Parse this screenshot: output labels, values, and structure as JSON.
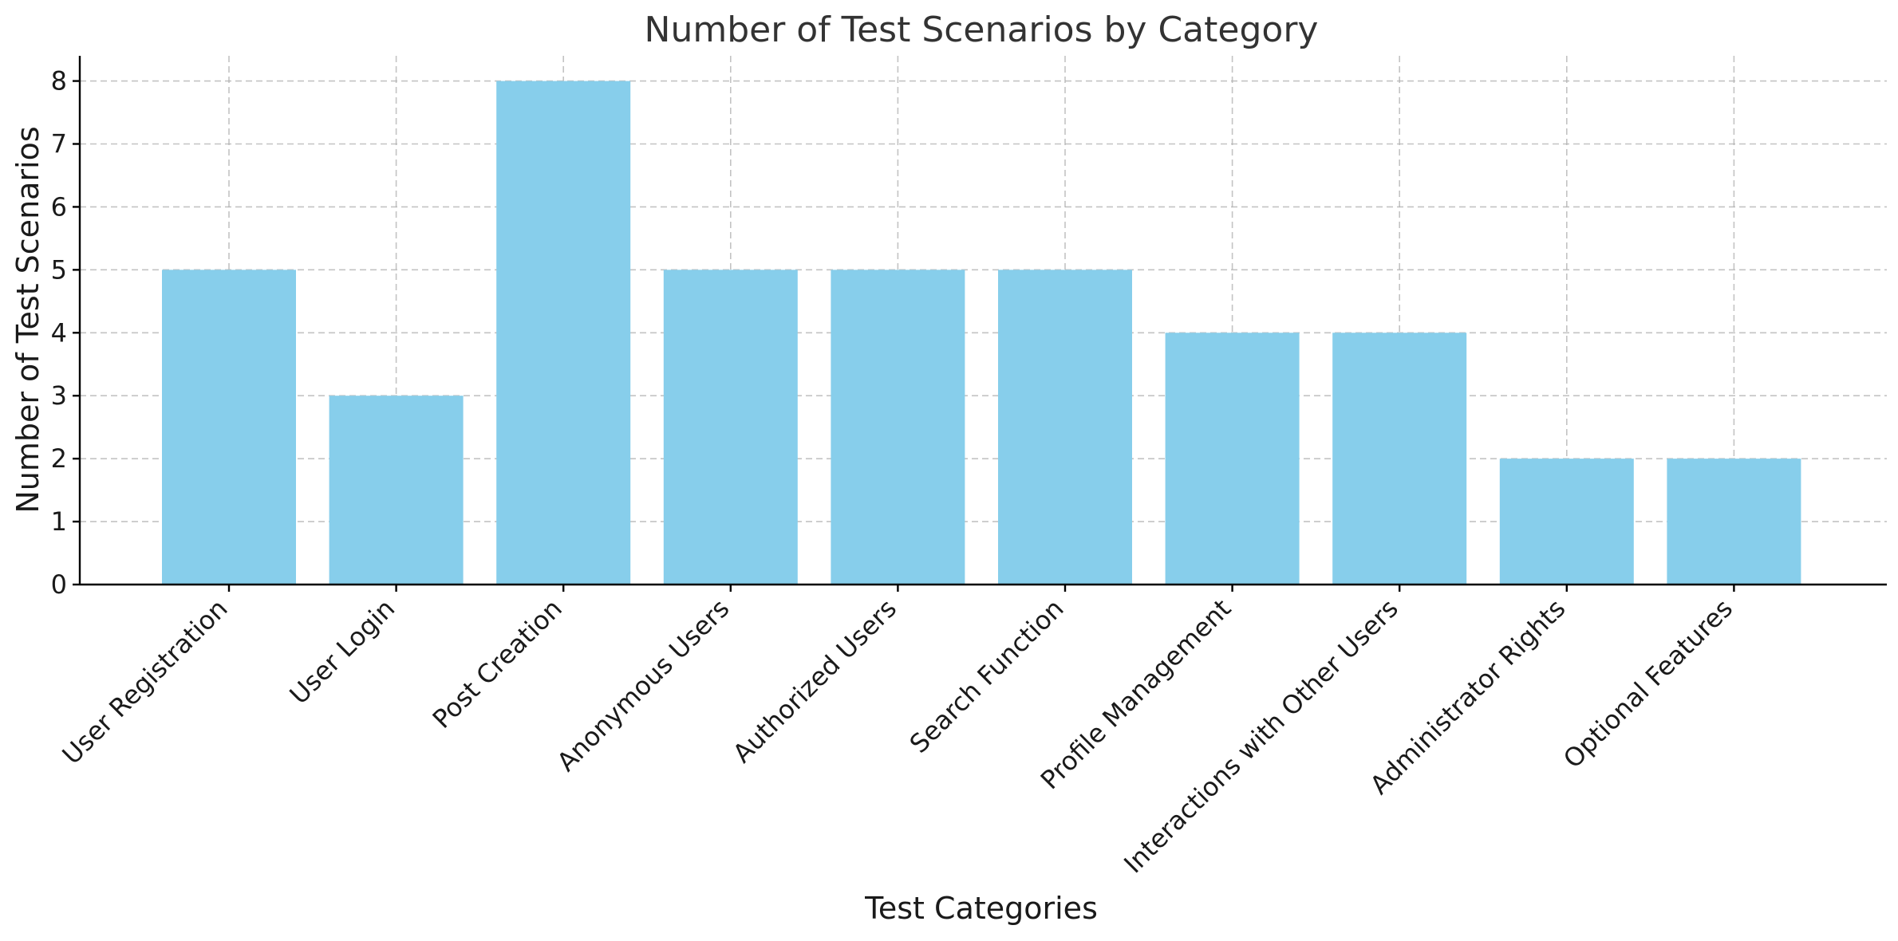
{
  "chart_data": {
    "type": "bar",
    "title": "Number of Test Scenarios by Category",
    "xlabel": "Test Categories",
    "ylabel": "Number of Test Scenarios",
    "categories": [
      "User Registration",
      "User Login",
      "Post Creation",
      "Anonymous Users",
      "Authorized Users",
      "Search Function",
      "Profile Management",
      "Interactions with Other Users",
      "Administrator Rights",
      "Optional Features"
    ],
    "values": [
      5,
      3,
      8,
      5,
      5,
      5,
      4,
      4,
      2,
      2
    ],
    "ylim": [
      0,
      8.4
    ],
    "yticks": [
      0,
      1,
      2,
      3,
      4,
      5,
      6,
      7,
      8
    ],
    "grid": true,
    "bar_color": "#87CEEB"
  }
}
